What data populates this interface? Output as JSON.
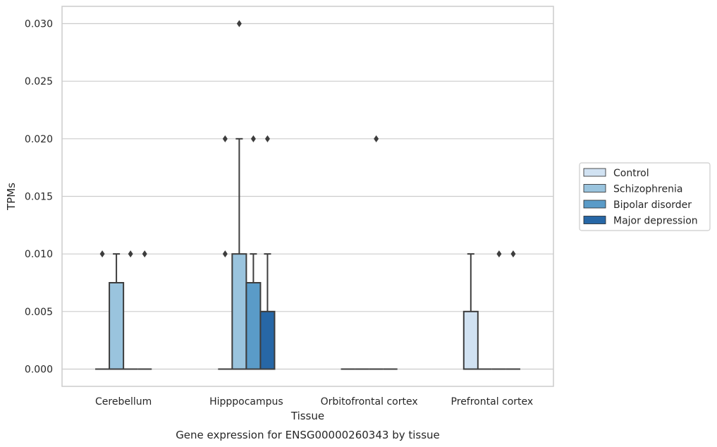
{
  "chart_data": {
    "type": "box",
    "caption": "Gene expression for ENSG00000260343 by tissue",
    "xlabel": "Tissue",
    "ylabel": "TPMs",
    "ylim": [
      -0.0015,
      0.0315
    ],
    "yticks": [
      0.0,
      0.005,
      0.01,
      0.015,
      0.02,
      0.025,
      0.03
    ],
    "ytick_labels": [
      "0.000",
      "0.005",
      "0.010",
      "0.015",
      "0.020",
      "0.025",
      "0.030"
    ],
    "grid": "horizontal",
    "legend_position": "right",
    "categories": [
      "Cerebellum",
      "Hipppocampus",
      "Orbitofrontal cortex",
      "Prefrontal cortex"
    ],
    "series": [
      {
        "name": "Control",
        "color": "#d1e2f2",
        "boxes": [
          {
            "q1": 0,
            "median": 0,
            "q3": 0,
            "whisker_low": 0,
            "whisker_high": 0,
            "outliers": [
              0.01
            ]
          },
          {
            "q1": 0,
            "median": 0,
            "q3": 0,
            "whisker_low": 0,
            "whisker_high": 0,
            "outliers": [
              0.01,
              0.02
            ]
          },
          {
            "q1": 0,
            "median": 0,
            "q3": 0,
            "whisker_low": 0,
            "whisker_high": 0,
            "outliers": []
          },
          {
            "q1": 0,
            "median": 0,
            "q3": 0.005,
            "whisker_low": 0,
            "whisker_high": 0.01,
            "outliers": []
          }
        ]
      },
      {
        "name": "Schizophrenia",
        "color": "#9ac4de",
        "boxes": [
          {
            "q1": 0,
            "median": 0,
            "q3": 0.0075,
            "whisker_low": 0,
            "whisker_high": 0.01,
            "outliers": []
          },
          {
            "q1": 0,
            "median": 0,
            "q3": 0.01,
            "whisker_low": 0,
            "whisker_high": 0.02,
            "outliers": [
              0.03
            ]
          },
          {
            "q1": 0,
            "median": 0,
            "q3": 0,
            "whisker_low": 0,
            "whisker_high": 0,
            "outliers": []
          },
          {
            "q1": 0,
            "median": 0,
            "q3": 0,
            "whisker_low": 0,
            "whisker_high": 0,
            "outliers": []
          }
        ]
      },
      {
        "name": "Bipolar disorder",
        "color": "#5a9bc8",
        "boxes": [
          {
            "q1": 0,
            "median": 0,
            "q3": 0,
            "whisker_low": 0,
            "whisker_high": 0,
            "outliers": [
              0.01
            ]
          },
          {
            "q1": 0,
            "median": 0,
            "q3": 0.0075,
            "whisker_low": 0,
            "whisker_high": 0.01,
            "outliers": [
              0.02
            ]
          },
          {
            "q1": 0,
            "median": 0,
            "q3": 0,
            "whisker_low": 0,
            "whisker_high": 0,
            "outliers": [
              0.02
            ]
          },
          {
            "q1": 0,
            "median": 0,
            "q3": 0,
            "whisker_low": 0,
            "whisker_high": 0,
            "outliers": [
              0.01
            ]
          }
        ]
      },
      {
        "name": "Major depression",
        "color": "#2767a6",
        "boxes": [
          {
            "q1": 0,
            "median": 0,
            "q3": 0,
            "whisker_low": 0,
            "whisker_high": 0,
            "outliers": [
              0.01
            ]
          },
          {
            "q1": 0,
            "median": 0,
            "q3": 0.005,
            "whisker_low": 0,
            "whisker_high": 0.01,
            "outliers": [
              0.02
            ]
          },
          {
            "q1": 0,
            "median": 0,
            "q3": 0,
            "whisker_low": 0,
            "whisker_high": 0,
            "outliers": []
          },
          {
            "q1": 0,
            "median": 0,
            "q3": 0,
            "whisker_low": 0,
            "whisker_high": 0,
            "outliers": [
              0.01
            ]
          }
        ]
      }
    ]
  }
}
